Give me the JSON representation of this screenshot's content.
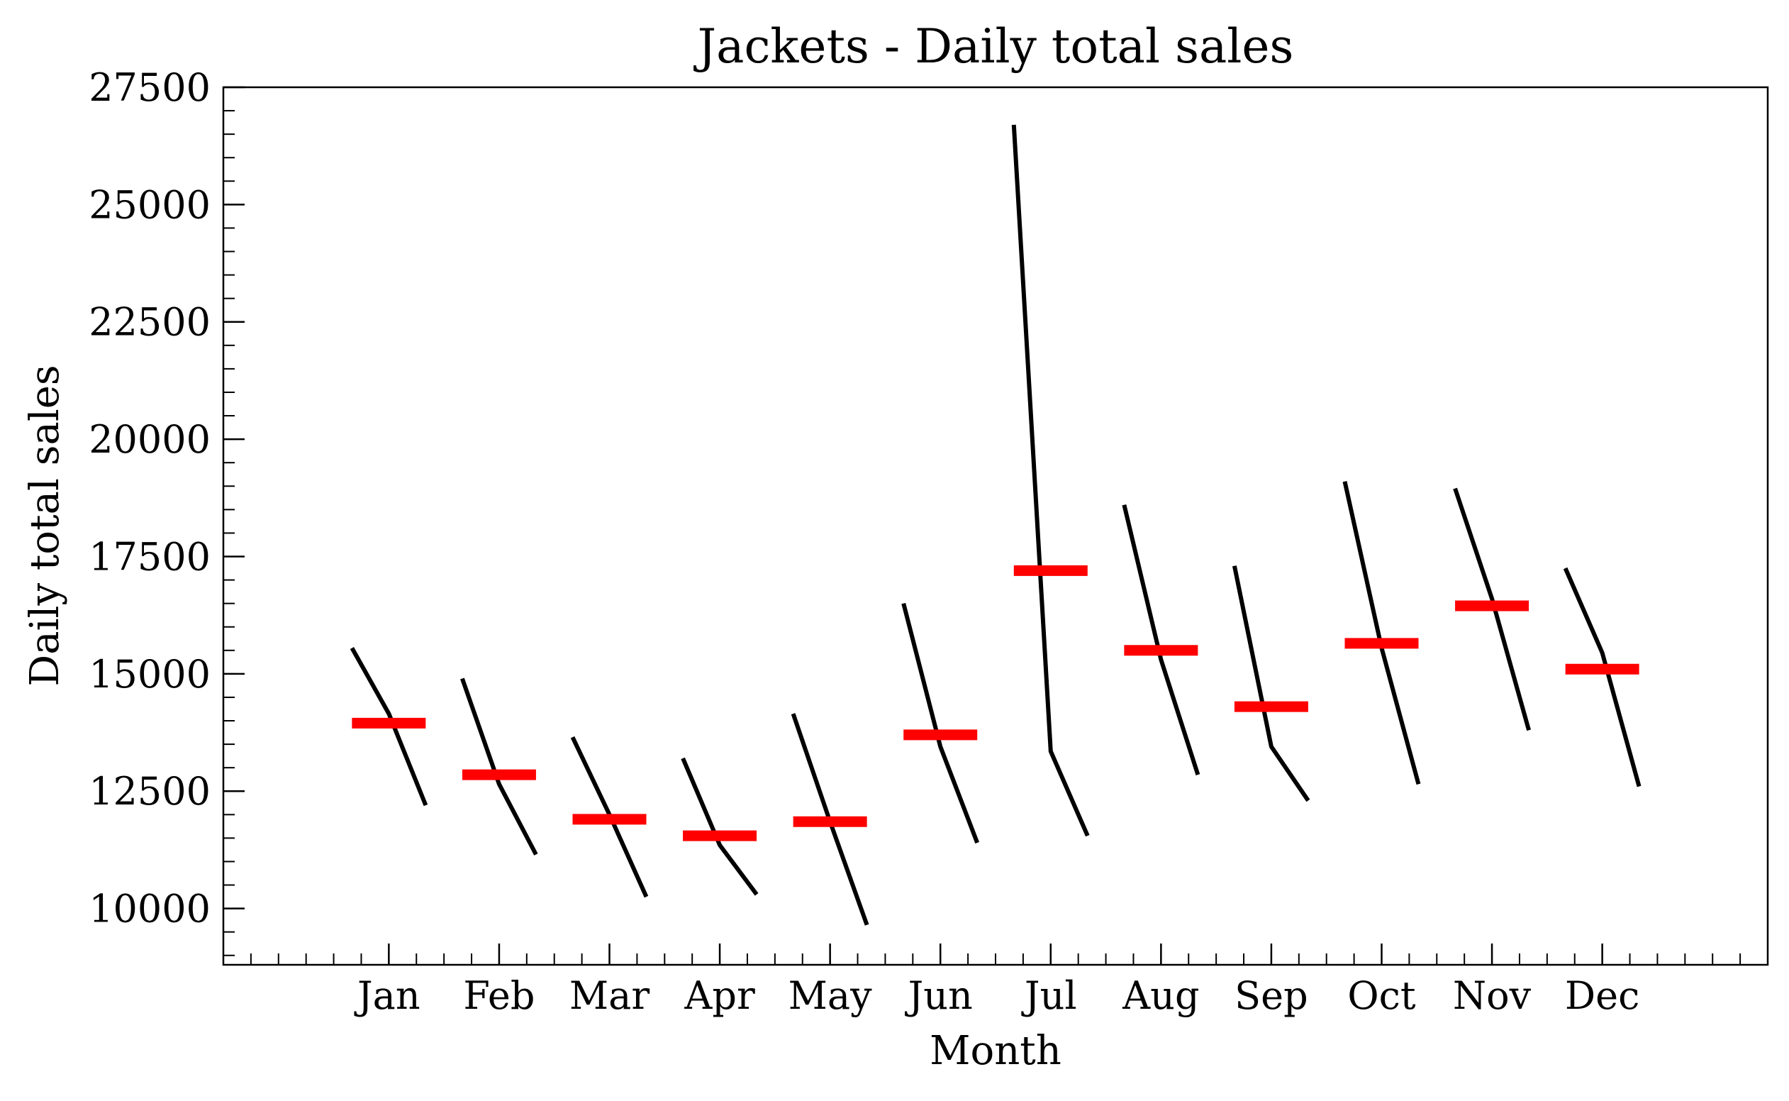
{
  "chart_data": {
    "type": "line",
    "chart_kind": "month subseries plot",
    "title": "Jackets - Daily total sales",
    "xlabel": "Month",
    "ylabel": "Daily total sales",
    "ylim": [
      8800,
      27500
    ],
    "yticks": [
      10000,
      12500,
      15000,
      17500,
      20000,
      22500,
      25000,
      27500
    ],
    "minor_ytick_step": 500,
    "categories": [
      "Jan",
      "Feb",
      "Mar",
      "Apr",
      "May",
      "Jun",
      "Jul",
      "Aug",
      "Sep",
      "Oct",
      "Nov",
      "Dec"
    ],
    "subseries": [
      {
        "month": "Jan",
        "values": [
          15550,
          14150,
          12200
        ],
        "mean": 13950
      },
      {
        "month": "Feb",
        "values": [
          14900,
          12650,
          11150
        ],
        "mean": 12850
      },
      {
        "month": "Mar",
        "values": [
          13650,
          12000,
          10250
        ],
        "mean": 11900
      },
      {
        "month": "Apr",
        "values": [
          13200,
          11350,
          10300
        ],
        "mean": 11550
      },
      {
        "month": "May",
        "values": [
          14150,
          11850,
          9650
        ],
        "mean": 11850
      },
      {
        "month": "Jun",
        "values": [
          16500,
          13450,
          11400
        ],
        "mean": 13700
      },
      {
        "month": "Jul",
        "values": [
          26700,
          13350,
          11550
        ],
        "mean": 17200
      },
      {
        "month": "Aug",
        "values": [
          18600,
          15300,
          12850
        ],
        "mean": 15500
      },
      {
        "month": "Sep",
        "values": [
          17300,
          13450,
          12300
        ],
        "mean": 14300
      },
      {
        "month": "Oct",
        "values": [
          19100,
          15550,
          12650
        ],
        "mean": 15650
      },
      {
        "month": "Nov",
        "values": [
          18950,
          16600,
          13800
        ],
        "mean": 16450
      },
      {
        "month": "Dec",
        "values": [
          17250,
          15450,
          12600
        ],
        "mean": 15100
      }
    ],
    "line_color": "#000000",
    "mean_color": "#ff0000",
    "grid": false,
    "legend": "none"
  }
}
